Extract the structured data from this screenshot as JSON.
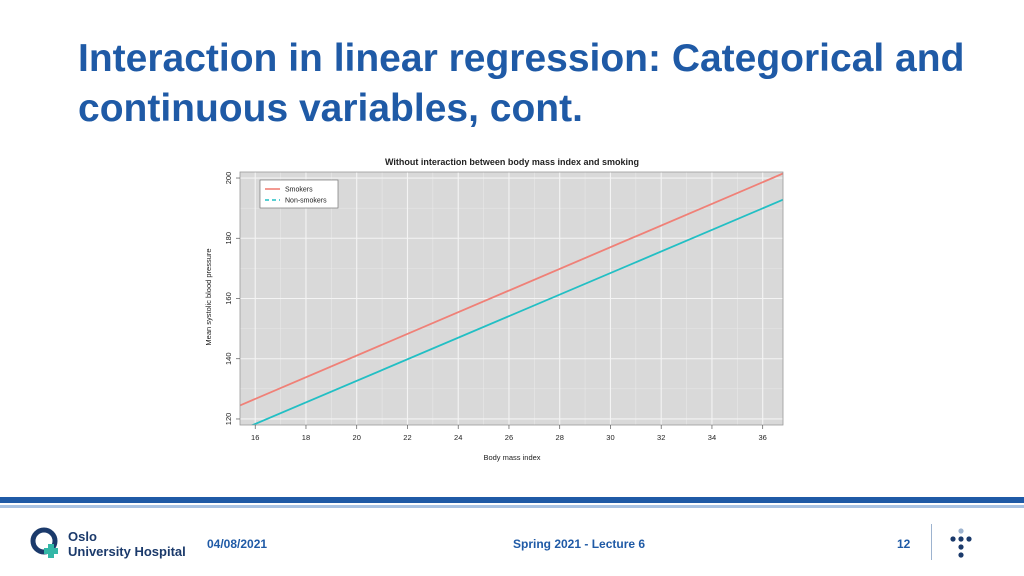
{
  "slide": {
    "title": "Interaction in linear regression: Categorical and continuous variables, cont."
  },
  "chart_data": {
    "type": "line",
    "title": "Without interaction between body mass index and smoking",
    "xlabel": "Body mass index",
    "ylabel": "Mean systolic blood pressure",
    "xlim": [
      15.4,
      36.8
    ],
    "ylim": [
      118,
      202
    ],
    "xticks": [
      16,
      18,
      20,
      22,
      24,
      26,
      28,
      30,
      32,
      34,
      36
    ],
    "yticks": [
      120,
      140,
      160,
      180,
      200
    ],
    "grid": true,
    "legend_position": "top-left",
    "series": [
      {
        "name": "Smokers",
        "color": "#f08077",
        "dash": "solid",
        "x": [
          15.4,
          36.8
        ],
        "y": [
          124.5,
          201.5
        ]
      },
      {
        "name": "Non-smokers",
        "color": "#22bfc4",
        "dash": "dashed",
        "x": [
          15.4,
          36.8
        ],
        "y": [
          116.2,
          192.8
        ]
      }
    ]
  },
  "footer": {
    "logo_line1": "Oslo",
    "logo_line2": "University Hospital",
    "date": "04/08/2021",
    "center_text": "Spring 2021 - Lecture 6",
    "page_number": "12"
  },
  "colors": {
    "title": "#1f5aa6",
    "plot_background": "#d9d9d9",
    "footer_band": "#1f5aa6"
  }
}
